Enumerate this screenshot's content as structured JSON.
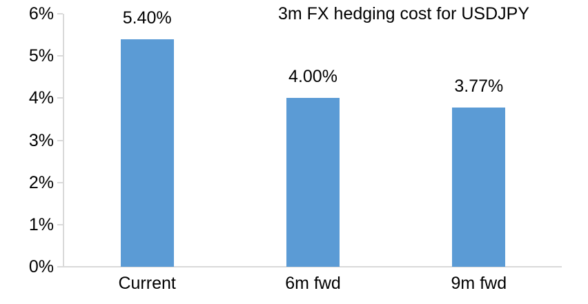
{
  "chart_data": {
    "type": "bar",
    "title": "3m FX hedging cost for USDJPY",
    "categories": [
      "Current",
      "6m fwd",
      "9m fwd"
    ],
    "values": [
      5.4,
      4.0,
      3.77
    ],
    "data_labels": [
      "5.40%",
      "4.00%",
      "3.77%"
    ],
    "xlabel": "",
    "ylabel": "",
    "ylim": [
      0,
      6
    ],
    "y_ticks": [
      0,
      1,
      2,
      3,
      4,
      5,
      6
    ],
    "y_tick_labels": [
      "0%",
      "1%",
      "2%",
      "3%",
      "4%",
      "5%",
      "6%"
    ],
    "grid": false,
    "legend": false,
    "bar_color": "#5B9BD5",
    "axis_color": "#D9D9D9",
    "text_color": "#000000"
  }
}
